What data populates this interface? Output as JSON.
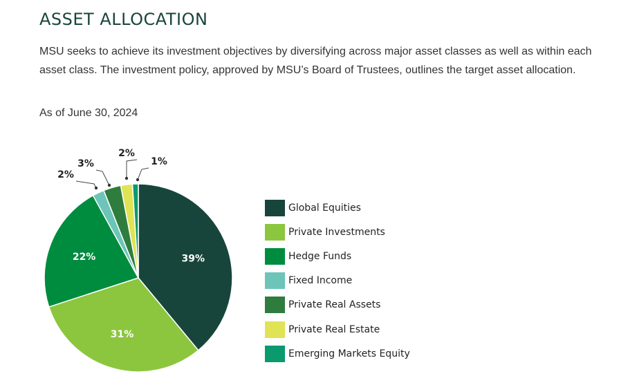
{
  "page": {
    "title": "ASSET ALLOCATION",
    "description": "MSU seeks to achieve its investment objectives by diversifying across major asset classes as well as within each asset class. The investment policy, approved by MSU’s Board of Trustees, outlines the target asset allocation.",
    "as_of": "As of June 30, 2024"
  },
  "chart_data": {
    "type": "pie",
    "title": "",
    "unit": "%",
    "slices": [
      {
        "name": "Global Equities",
        "value": 39,
        "label": "39%",
        "color": "#18453b"
      },
      {
        "name": "Private Investments",
        "value": 31,
        "label": "31%",
        "color": "#8cc63f"
      },
      {
        "name": "Hedge Funds",
        "value": 22,
        "label": "22%",
        "color": "#008c3f"
      },
      {
        "name": "Fixed Income",
        "value": 2,
        "label": "2%",
        "color": "#6cc5b8"
      },
      {
        "name": "Private Real Assets",
        "value": 3,
        "label": "3%",
        "color": "#2e7d3e"
      },
      {
        "name": "Private Real Estate",
        "value": 2,
        "label": "2%",
        "color": "#e0e354"
      },
      {
        "name": "Emerging Markets Equity",
        "value": 1,
        "label": "1%",
        "color": "#0b9a6d"
      }
    ],
    "start": "12 o'clock",
    "direction": "clockwise",
    "legend_position": "right"
  }
}
